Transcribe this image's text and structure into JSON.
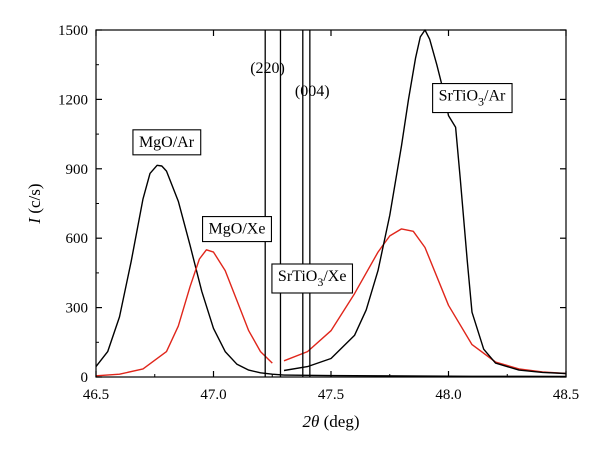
{
  "chart_data": {
    "type": "line",
    "title": "",
    "xlabel": {
      "symbol": "2θ",
      "unit": "(deg)"
    },
    "ylabel": {
      "symbol": "I",
      "unit": "(c/s)"
    },
    "xlim": [
      46.5,
      48.5
    ],
    "ylim": [
      0,
      1500
    ],
    "xticks": [
      "46.5",
      "47.0",
      "47.5",
      "48.0",
      "48.5"
    ],
    "yticks": [
      "0",
      "300",
      "600",
      "900",
      "1200",
      "1500"
    ],
    "grid": false,
    "legend": "none",
    "series": [
      {
        "color": "#000000",
        "x": [
          46.5,
          46.55,
          46.6,
          46.65,
          46.7,
          46.73,
          46.76,
          46.78,
          46.8,
          46.85,
          46.9,
          46.95,
          47.0,
          47.05,
          47.1,
          47.15,
          47.2,
          47.25,
          47.3
        ],
        "y": [
          45,
          110,
          260,
          500,
          770,
          880,
          915,
          912,
          890,
          760,
          570,
          370,
          210,
          110,
          55,
          30,
          18,
          12,
          8
        ]
      },
      {
        "color": "#e0261b",
        "x": [
          46.5,
          46.6,
          46.7,
          46.8,
          46.85,
          46.9,
          46.94,
          46.97,
          47.0,
          47.05,
          47.1,
          47.15,
          47.2,
          47.25
        ],
        "y": [
          5,
          12,
          35,
          110,
          220,
          390,
          510,
          550,
          540,
          460,
          330,
          200,
          110,
          60
        ]
      },
      {
        "color": "#e0261b",
        "x": [
          47.3,
          47.4,
          47.5,
          47.6,
          47.7,
          47.75,
          47.8,
          47.85,
          47.9,
          48.0,
          48.1,
          48.2,
          48.3,
          48.4,
          48.5
        ],
        "y": [
          70,
          110,
          200,
          360,
          540,
          610,
          640,
          630,
          560,
          310,
          140,
          65,
          35,
          22,
          15
        ]
      },
      {
        "color": "#000000",
        "x": [
          47.3,
          47.4,
          47.5,
          47.6,
          47.65,
          47.7,
          47.75,
          47.8,
          47.83,
          47.86,
          47.88,
          47.9,
          47.92,
          47.95,
          47.98,
          48.0,
          48.03,
          48.05,
          48.08,
          48.1,
          48.15,
          48.2,
          48.3,
          48.4,
          48.5
        ],
        "y": [
          28,
          45,
          80,
          180,
          290,
          460,
          700,
          1000,
          1200,
          1380,
          1470,
          1500,
          1460,
          1350,
          1230,
          1130,
          1080,
          860,
          500,
          280,
          120,
          60,
          30,
          20,
          15
        ]
      },
      {
        "color": "#000000",
        "x": [
          47.3,
          47.5,
          47.7,
          47.9,
          48.1,
          48.3,
          48.5
        ],
        "y": [
          8,
          6,
          5,
          4,
          3,
          3,
          2
        ]
      }
    ],
    "reference_lines": [
      {
        "label": "(220)",
        "x": [
          47.22,
          47.285
        ]
      },
      {
        "label": "(004)",
        "x": [
          47.38,
          47.41
        ]
      }
    ],
    "annotations": [
      {
        "text": "MgO/Ar",
        "x": 46.8,
        "y": 995
      },
      {
        "text": "MgO/Xe",
        "x": 47.1,
        "y": 620
      },
      {
        "text": "SrTiO",
        "sub": "3",
        "tail": "/Xe",
        "x": 47.42,
        "y": 415
      },
      {
        "text": "SrTiO",
        "sub": "3",
        "tail": "/Ar",
        "x": 48.1,
        "y": 1195
      }
    ]
  }
}
